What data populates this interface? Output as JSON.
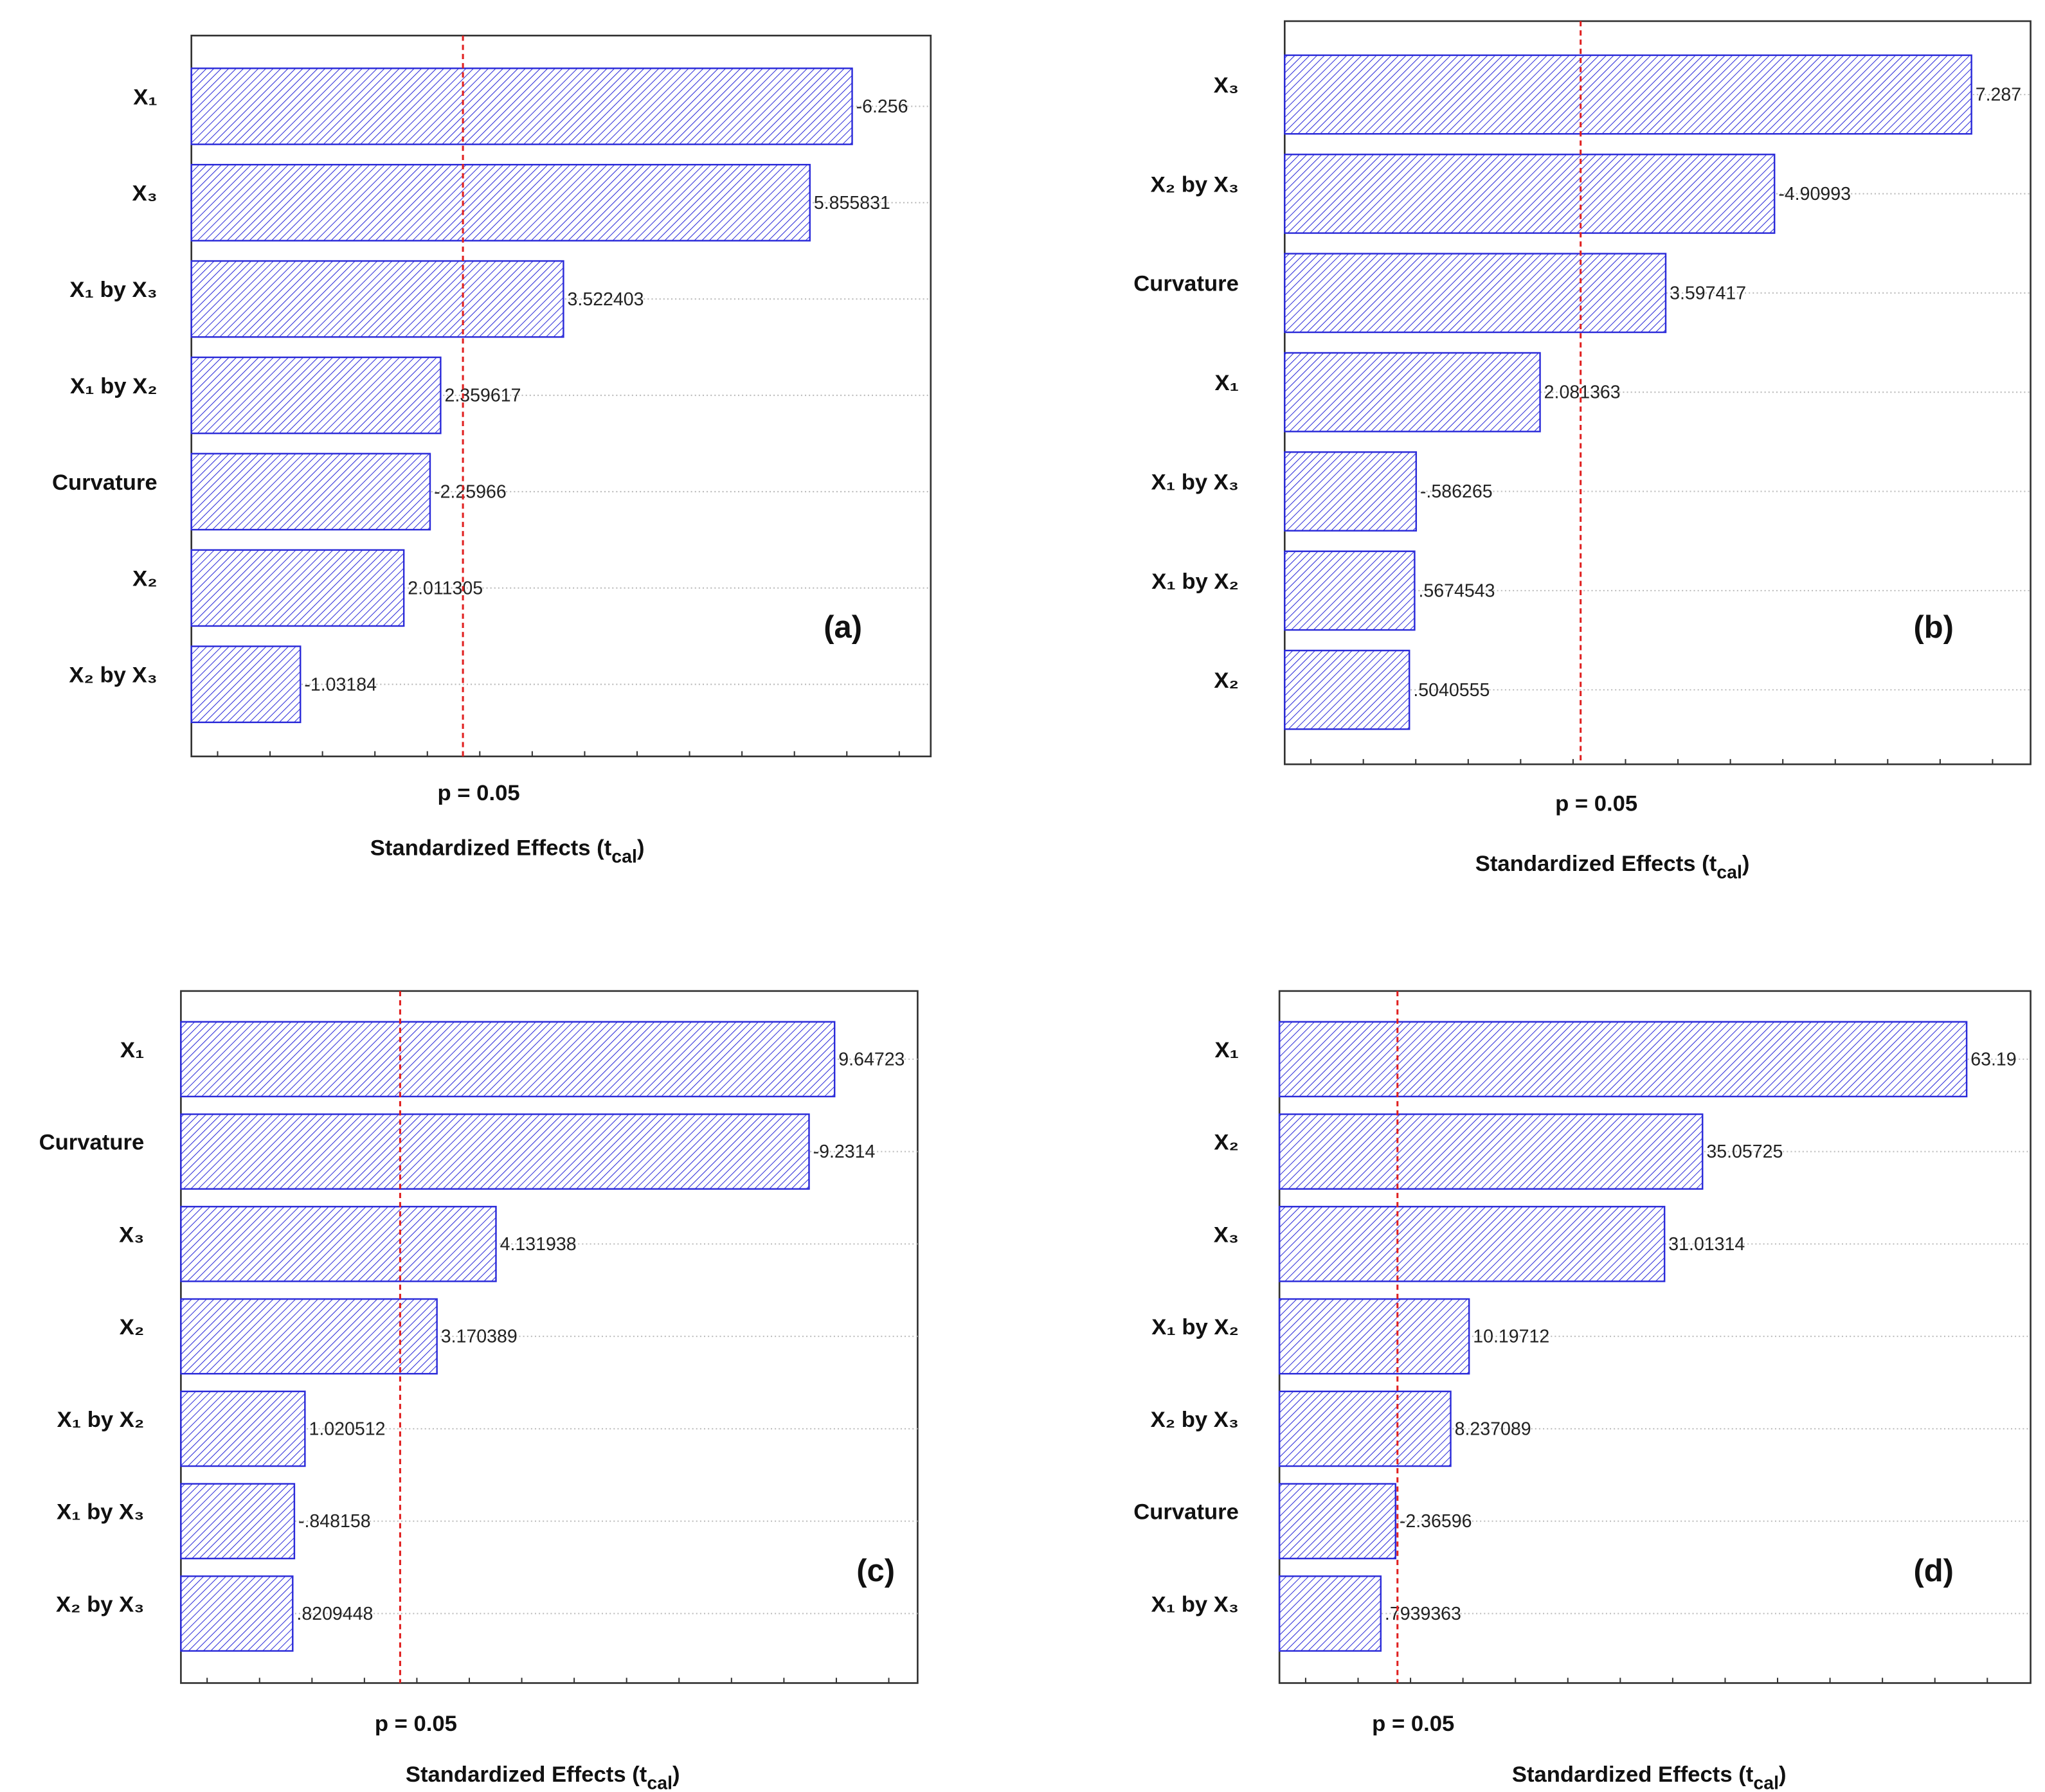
{
  "chart_data": [
    {
      "type": "pareto",
      "panel_label": "(a)",
      "color": "#2b2bd9",
      "categories": [
        "X₁",
        "X₃",
        "X₁ by X₃",
        "X₁ by X₂",
        "Curvature",
        "X₂",
        "X₂ by X₃"
      ],
      "values": [
        -6.256,
        5.855831,
        3.522403,
        2.359617,
        -2.25966,
        2.011305,
        -1.03184
      ],
      "value_labels": [
        "-6.256",
        "5.855831",
        "3.522403",
        "2.359617",
        "-2.25966",
        "2.011305",
        "-1.03184"
      ],
      "xlim": [
        0,
        7
      ],
      "ref_value": 2.571,
      "ref_label": "p = 0.05",
      "xlabel": [
        "Standardized Effects (t",
        "cal",
        ")"
      ]
    },
    {
      "type": "pareto",
      "panel_label": "(b)",
      "color": "#2b2bd9",
      "categories": [
        "X₃",
        "X₂ by X₃",
        "Curvature",
        "X₁",
        "X₁ by X₃",
        "X₁ by X₂",
        "X₂"
      ],
      "values": [
        7.287,
        -4.90993,
        3.597417,
        2.081363,
        -0.586265,
        0.5674543,
        0.5040555
      ],
      "value_labels": [
        "7.287",
        "-4.90993",
        "3.597417",
        "2.081363",
        "-.586265",
        ".5674543",
        ".5040555"
      ],
      "xlim": [
        -1,
        8
      ],
      "ref_value": 2.571,
      "ref_label": "p = 0.05",
      "xlabel": [
        "Standardized Effects (t",
        "cal",
        ")"
      ]
    },
    {
      "type": "pareto",
      "panel_label": "(c)",
      "color": "#2b2bd9",
      "categories": [
        "X₁",
        "Curvature",
        "X₃",
        "X₂",
        "X₁ by X₂",
        "X₁ by X₃",
        "X₂ by X₃"
      ],
      "values": [
        9.64723,
        -9.2314,
        4.131938,
        3.170389,
        1.020512,
        -0.848158,
        0.8209448
      ],
      "value_labels": [
        "9.64723",
        "-9.2314",
        "4.131938",
        "3.170389",
        "1.020512",
        "-.848158",
        ".8209448"
      ],
      "xlim": [
        -1,
        11
      ],
      "ref_value": 2.571,
      "ref_label": "p = 0.05",
      "xlabel": [
        "Standardized Effects (t",
        "cal",
        ")"
      ]
    },
    {
      "type": "pareto",
      "panel_label": "(d)",
      "color": "#2b2bd9",
      "categories": [
        "X₁",
        "X₂",
        "X₃",
        "X₁ by X₂",
        "X₂ by X₃",
        "Curvature",
        "X₁ by X₃"
      ],
      "values": [
        63.19,
        35.05725,
        31.01314,
        10.19712,
        8.237089,
        -2.36596,
        0.7939363
      ],
      "value_labels": [
        "63.19",
        "35.05725",
        "31.01314",
        "10.19712",
        "8.237089",
        "-2.36596",
        ".7939363"
      ],
      "xlim": [
        -10,
        70
      ],
      "ref_value": 2.571,
      "ref_label": "p = 0.05",
      "xlabel": [
        "Standardized Effects (t",
        "cal",
        ")"
      ]
    }
  ]
}
